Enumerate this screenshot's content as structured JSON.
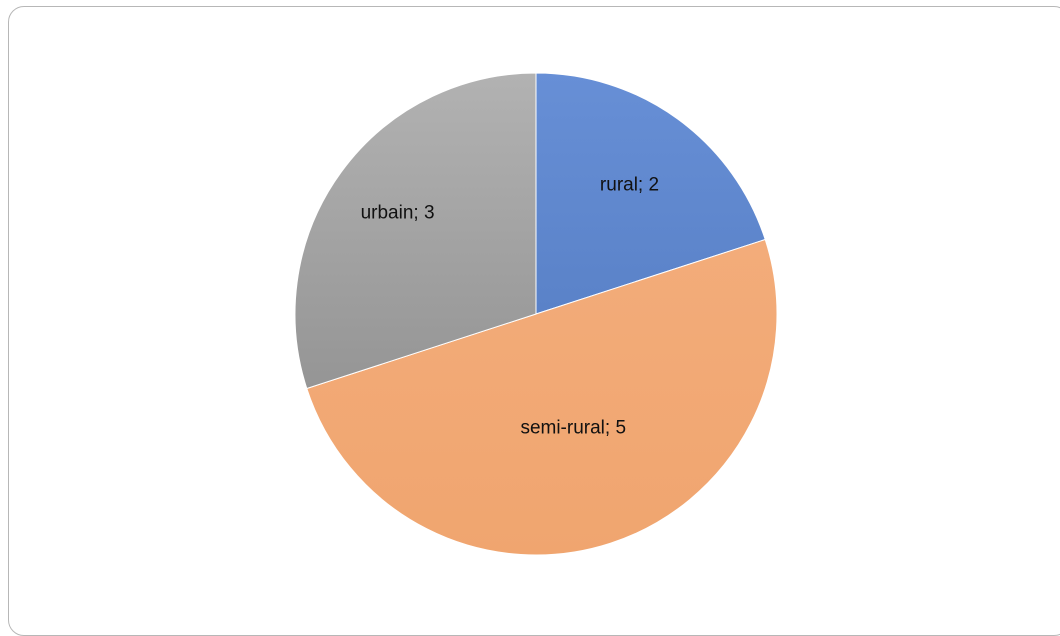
{
  "chart_data": {
    "type": "pie",
    "title": "",
    "categories": [
      "rural",
      "semi-rural",
      "urbain"
    ],
    "values": [
      2,
      5,
      3
    ],
    "data_labels": [
      "rural; 2",
      "semi-rural; 5",
      "urbain; 3"
    ],
    "colors": [
      "#5f87cd",
      "#f2a975",
      "#a5a5a5"
    ],
    "start_angle_deg": 0,
    "direction": "clockwise",
    "legend": "none"
  }
}
